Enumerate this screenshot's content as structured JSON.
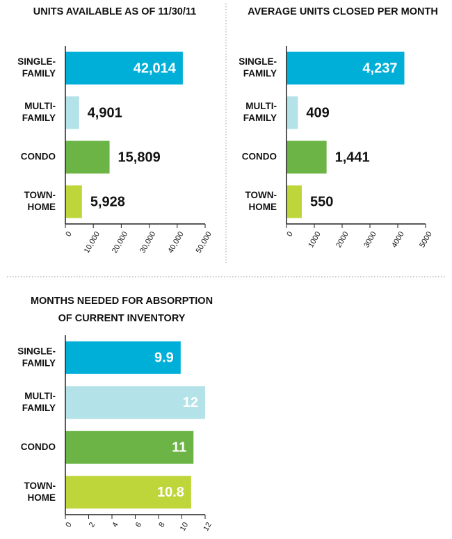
{
  "chart_data": [
    {
      "type": "bar",
      "orientation": "horizontal",
      "title": [
        "UNITS AVAILABLE AS OF 11/30/11"
      ],
      "categories": [
        [
          "SINGLE-",
          "FAMILY"
        ],
        [
          "MULTI-",
          "FAMILY"
        ],
        [
          "CONDO"
        ],
        [
          "TOWN-",
          "HOME"
        ]
      ],
      "values": [
        42014,
        4901,
        15809,
        5928
      ],
      "value_labels": [
        "42,014",
        "4,901",
        "15,809",
        "5,928"
      ],
      "colors": [
        "#00afd8",
        "#b3e2e8",
        "#6cb446",
        "#bed63a"
      ],
      "xlim": [
        0,
        50000
      ],
      "xticks": [
        0,
        {
          "value": 10000,
          "label": "10,000"
        },
        {
          "value": 20000,
          "label": "20,000"
        },
        {
          "value": 30000,
          "label": "30,000"
        },
        {
          "value": 40000,
          "label": "40,000"
        },
        {
          "value": 50000,
          "label": "50,000"
        }
      ]
    },
    {
      "type": "bar",
      "orientation": "horizontal",
      "title": [
        "AVERAGE UNITS CLOSED PER MONTH"
      ],
      "categories": [
        [
          "SINGLE-",
          "FAMILY"
        ],
        [
          "MULTI-",
          "FAMILY"
        ],
        [
          "CONDO"
        ],
        [
          "TOWN-",
          "HOME"
        ]
      ],
      "values": [
        4237,
        409,
        1441,
        550
      ],
      "value_labels": [
        "4,237",
        "409",
        "1,441",
        "550"
      ],
      "colors": [
        "#00afd8",
        "#b3e2e8",
        "#6cb446",
        "#bed63a"
      ],
      "xlim": [
        0,
        5000
      ],
      "xticks": [
        0,
        1000,
        2000,
        3000,
        4000,
        5000
      ]
    },
    {
      "type": "bar",
      "orientation": "horizontal",
      "title": [
        "MONTHS NEEDED FOR ABSORPTION",
        "OF CURRENT INVENTORY"
      ],
      "categories": [
        [
          "SINGLE-",
          "FAMILY"
        ],
        [
          "MULTI-",
          "FAMILY"
        ],
        [
          "CONDO"
        ],
        [
          "TOWN-",
          "HOME"
        ]
      ],
      "values": [
        9.9,
        12,
        11,
        10.8
      ],
      "colors": [
        "#00afd8",
        "#b3e2e8",
        "#6cb446",
        "#bed63a"
      ],
      "xlim": [
        0,
        12
      ],
      "xticks": [
        0,
        2,
        4,
        6,
        8,
        10,
        12
      ]
    }
  ]
}
